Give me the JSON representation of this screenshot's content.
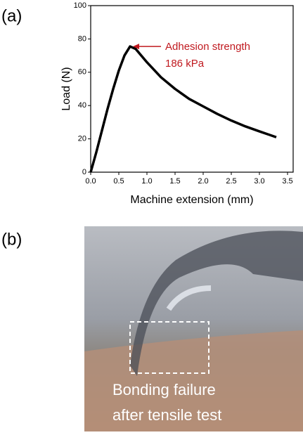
{
  "panels": {
    "a_label": "(a)",
    "b_label": "(b)",
    "photo_caption": [
      "Bonding failure",
      "after tensile test"
    ]
  },
  "chart_data": {
    "type": "line",
    "xlabel": "Machine extension (mm)",
    "ylabel": "Load (N)",
    "annotation": [
      "Adhesion strength",
      "186 kPa"
    ],
    "x": [
      0,
      0.1,
      0.2,
      0.3,
      0.4,
      0.5,
      0.6,
      0.7,
      0.8,
      1.0,
      1.25,
      1.5,
      1.75,
      2.0,
      2.25,
      2.5,
      2.75,
      3.0,
      3.3
    ],
    "values": [
      0,
      12,
      25,
      38,
      50,
      61,
      70,
      75.5,
      74,
      66,
      57,
      50,
      44,
      39.5,
      35,
      31,
      27.5,
      24.5,
      21
    ],
    "color": "#000000",
    "xlim": [
      0,
      3.6
    ],
    "xticks": [
      {
        "value": 0,
        "label": "0.0"
      },
      0.5,
      {
        "value": 1,
        "label": "1.0"
      },
      1.5,
      {
        "value": 2,
        "label": "2.0"
      },
      2.5,
      {
        "value": 3,
        "label": "3.0"
      },
      3.5
    ],
    "ylim": [
      0,
      100
    ],
    "yticks": [
      0,
      20,
      40,
      60,
      80,
      100
    ]
  }
}
